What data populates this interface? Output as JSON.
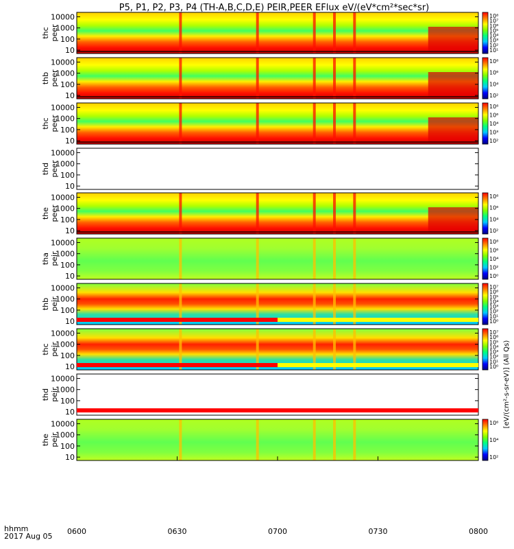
{
  "title": "P5, P1, P2, P3, P4 (TH-A,B,C,D,E) PEIR,PEER EFlux eV/(eV*cm²*sec*sr)",
  "time_axis": {
    "label_line1": "hhmm",
    "label_line2": "2017 Aug 05",
    "ticks": [
      "0600",
      "0630",
      "0700",
      "0730",
      "0800"
    ],
    "tick_minutes": [
      0,
      30,
      60,
      90,
      120
    ],
    "range_minutes": [
      0,
      120
    ]
  },
  "colorbar_unit_text": "[eV/(cm²-s-sr-eV)] (All Qs)",
  "panels": [
    {
      "label1": "thc",
      "label2": "peer",
      "species": "electron",
      "has_colorbar": true,
      "cbar_ticks": [
        "10⁸",
        "10⁷",
        "10⁶",
        "10⁵",
        "10⁴",
        "10³",
        "10²",
        "10¹"
      ]
    },
    {
      "label1": "thb",
      "label2": "peer",
      "species": "electron",
      "has_colorbar": true,
      "cbar_ticks": [
        "10⁸",
        "10⁶",
        "10⁴",
        "10²"
      ]
    },
    {
      "label1": "thc",
      "label2": "peer",
      "species": "electron",
      "has_colorbar": true,
      "cbar_ticks": [
        "10⁸",
        "10⁶",
        "10⁴",
        "10³",
        "10²"
      ]
    },
    {
      "label1": "thd",
      "label2": "peer",
      "species": "none",
      "has_colorbar": false,
      "cbar_ticks": []
    },
    {
      "label1": "the",
      "label2": "peer",
      "species": "electron",
      "has_colorbar": true,
      "cbar_ticks": [
        "10⁸",
        "10⁶",
        "10⁴",
        "10²"
      ]
    },
    {
      "label1": "tha",
      "label2": "peir",
      "species": "ion",
      "has_colorbar": true,
      "cbar_ticks": [
        "10⁸",
        "10⁶",
        "10⁴",
        "10²",
        "10⁰"
      ]
    },
    {
      "label1": "thb",
      "label2": "peir",
      "species": "ion",
      "has_colorbar": true,
      "cbar_ticks": [
        "10⁷",
        "10⁶",
        "10⁵",
        "10⁴",
        "10³",
        "10²",
        "10¹",
        "10⁰"
      ]
    },
    {
      "label1": "thc",
      "label2": "peir",
      "species": "ion",
      "has_colorbar": true,
      "cbar_ticks": [
        "10⁷",
        "10⁶",
        "10⁵",
        "10⁴",
        "10³",
        "10²",
        "10¹",
        "10⁰"
      ]
    },
    {
      "label1": "thd",
      "label2": "peir",
      "species": "none",
      "has_colorbar": false,
      "cbar_ticks": []
    },
    {
      "label1": "the",
      "label2": "peir",
      "species": "ion",
      "has_colorbar": true,
      "cbar_ticks": [
        "10⁶",
        "10⁴",
        "10²"
      ]
    }
  ],
  "chart_data": {
    "type": "heatmap",
    "title": "P5, P1, P2, P3, P4 (TH-A,B,C,D,E) PEIR,PEER EFlux eV/(eV*cm²*sec*sr)",
    "x_axis": {
      "label": "hhmm",
      "date": "2017 Aug 05",
      "tick_labels": [
        "0600",
        "0630",
        "0700",
        "0730",
        "0800"
      ],
      "range_minutes": [
        0,
        120
      ]
    },
    "y_axis": {
      "scale": "log",
      "range": [
        5,
        25000
      ],
      "tick_labels": [
        "10000",
        "1000",
        "100",
        "10"
      ],
      "tick_values": [
        10000,
        1000,
        100,
        10
      ]
    },
    "color_scale": "rainbow",
    "color_map_low_to_high": [
      "#000080",
      "#0000ff",
      "#00c8ff",
      "#00ff80",
      "#80ff00",
      "#ffff00",
      "#ff8000",
      "#ff0000"
    ],
    "panels": [
      {
        "name": "thc peer",
        "colorbar_ticks": [
          "10⁸",
          "10⁷",
          "10⁶",
          "10⁵",
          "10⁴",
          "10³",
          "10²",
          "10¹"
        ]
      },
      {
        "name": "thb peer",
        "colorbar_ticks": [
          "10⁸",
          "10⁶",
          "10⁴",
          "10²"
        ]
      },
      {
        "name": "thc peer",
        "colorbar_ticks": [
          "10⁸",
          "10⁶",
          "10⁴",
          "10³",
          "10²"
        ]
      },
      {
        "name": "thd peer",
        "colorbar_ticks": []
      },
      {
        "name": "the peer",
        "colorbar_ticks": [
          "10⁸",
          "10⁶",
          "10⁴",
          "10²"
        ]
      },
      {
        "name": "tha peir",
        "colorbar_ticks": [
          "10⁸",
          "10⁶",
          "10⁴",
          "10²",
          "10⁰"
        ]
      },
      {
        "name": "thb peir",
        "colorbar_ticks": [
          "10⁷",
          "10⁶",
          "10⁵",
          "10⁴",
          "10³",
          "10²",
          "10¹",
          "10⁰"
        ]
      },
      {
        "name": "thc peir",
        "colorbar_ticks": [
          "10⁷",
          "10⁶",
          "10⁵",
          "10⁴",
          "10³",
          "10²",
          "10¹",
          "10⁰"
        ]
      },
      {
        "name": "thd peir",
        "colorbar_ticks": []
      },
      {
        "name": "the peir",
        "colorbar_ticks": [
          "10⁶",
          "10⁴",
          "10²"
        ]
      }
    ],
    "features": {
      "electron_band_energy_eV": [
        40,
        400
      ],
      "ion_band_energy_eV": [
        1000,
        4000
      ],
      "spike_times_minutes": [
        31,
        54,
        71,
        77,
        83
      ]
    }
  }
}
